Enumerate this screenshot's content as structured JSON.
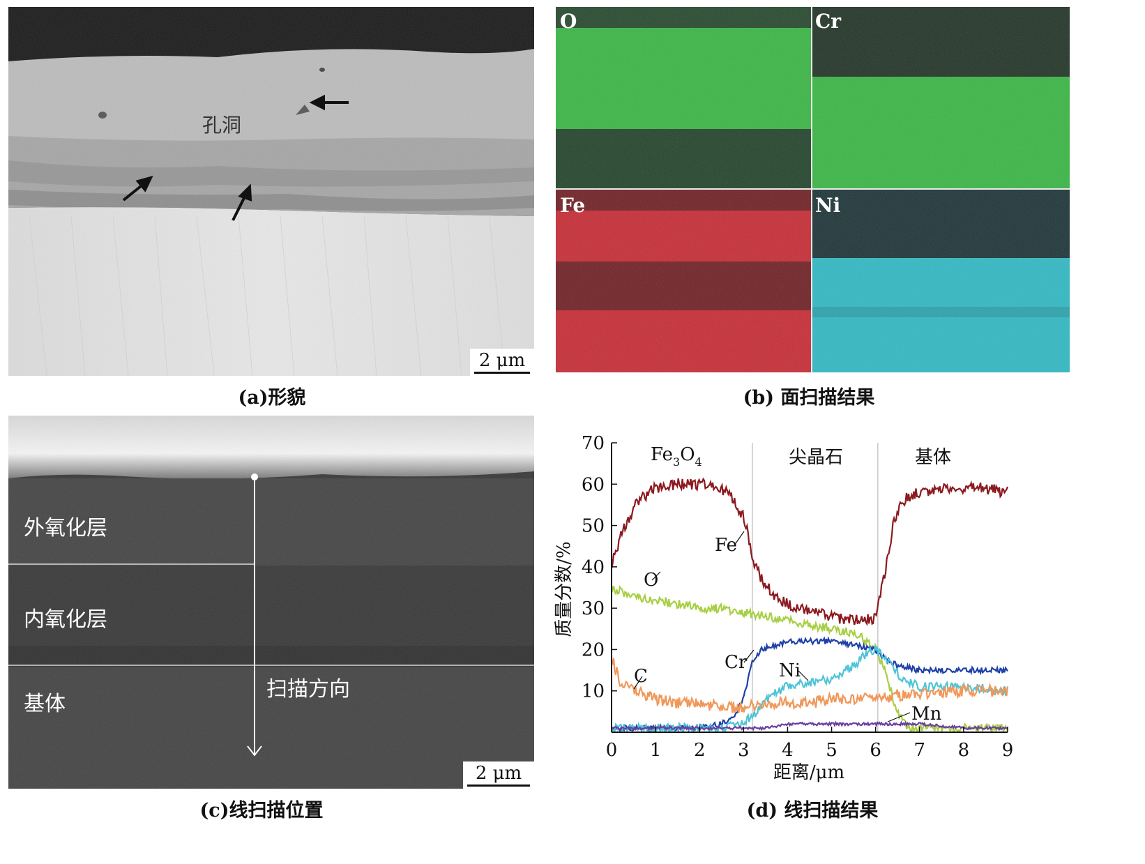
{
  "panel_a": {
    "annotation": "孔洞",
    "scale_bar": "2 μm",
    "caption": "(a)形貌"
  },
  "panel_b": {
    "maps": [
      {
        "element": "O",
        "color": "#2fb53a"
      },
      {
        "element": "Cr",
        "color": "#2fb53a"
      },
      {
        "element": "Fe",
        "color": "#c8202a"
      },
      {
        "element": "Ni",
        "color": "#25b8c4"
      }
    ],
    "caption": "(b) 面扫描结果"
  },
  "panel_c": {
    "layers": [
      "外氧化层",
      "内氧化层",
      "基体"
    ],
    "scan_direction": "扫描方向",
    "scale_bar": "2 μm",
    "caption": "(c)线扫描位置"
  },
  "panel_d": {
    "caption": "(d) 线扫描结果"
  },
  "chart_data": {
    "type": "line",
    "title": "",
    "xlabel": "距离/μm",
    "ylabel": "质量分数/%",
    "xlim": [
      0,
      9
    ],
    "ylim": [
      0,
      70
    ],
    "xticks": [
      0,
      1,
      2,
      3,
      4,
      5,
      6,
      7,
      8,
      9
    ],
    "yticks": [
      10,
      20,
      30,
      40,
      50,
      60,
      70
    ],
    "regions": [
      {
        "label_main": "Fe",
        "label_sub1": "3",
        "label_mid": "O",
        "label_sub2": "4",
        "x_center": 1.5
      },
      {
        "label": "尖晶石",
        "x_center": 4.65
      },
      {
        "label": "基体",
        "x_center": 7.55
      }
    ],
    "region_boundaries": [
      3.2,
      6.05
    ],
    "series": [
      {
        "name": "Fe",
        "color": "#8b1a1f",
        "x": [
          0,
          0.3,
          0.6,
          1.0,
          1.5,
          2.0,
          2.5,
          2.8,
          3.0,
          3.1,
          3.2,
          3.4,
          3.7,
          4.0,
          4.5,
          5.0,
          5.5,
          5.8,
          6.0,
          6.2,
          6.4,
          6.6,
          7.0,
          7.5,
          8.0,
          8.5,
          9.0
        ],
        "y": [
          41,
          50,
          56,
          59,
          60,
          60,
          59,
          56,
          52,
          48,
          42,
          37,
          33,
          31,
          29,
          28,
          27,
          27,
          28,
          38,
          50,
          56,
          58,
          59,
          59,
          59,
          58
        ]
      },
      {
        "name": "O",
        "color": "#a8cf45",
        "x": [
          0,
          0.5,
          1.0,
          1.5,
          2.0,
          2.5,
          3.0,
          3.5,
          4.0,
          4.5,
          5.0,
          5.5,
          5.8,
          6.0,
          6.2,
          6.4,
          6.6,
          6.8,
          7.0,
          8.0,
          9.0
        ],
        "y": [
          35,
          33,
          32,
          31,
          30,
          30,
          29,
          28,
          27,
          26,
          25,
          24,
          22,
          20,
          15,
          8,
          3,
          1,
          1,
          1,
          1
        ]
      },
      {
        "name": "Cr",
        "color": "#1f3fa8",
        "x": [
          0,
          1.0,
          2.0,
          2.5,
          2.8,
          3.0,
          3.1,
          3.2,
          3.4,
          3.7,
          4.0,
          4.5,
          5.0,
          5.5,
          6.0,
          6.2,
          6.5,
          7.0,
          8.0,
          9.0
        ],
        "y": [
          1,
          1,
          1,
          2,
          4,
          8,
          13,
          17,
          20,
          21,
          22,
          22,
          22,
          21,
          20,
          18,
          16,
          15,
          15,
          15
        ]
      },
      {
        "name": "Ni",
        "color": "#4fc4d6",
        "x": [
          0,
          1.0,
          2.0,
          2.5,
          3.0,
          3.3,
          3.6,
          4.0,
          4.5,
          5.0,
          5.5,
          5.8,
          6.0,
          6.3,
          6.6,
          7.0,
          8.0,
          9.0
        ],
        "y": [
          1,
          1,
          1,
          1,
          2,
          5,
          9,
          11,
          12,
          13,
          16,
          19,
          20,
          17,
          13,
          11,
          11,
          10
        ]
      },
      {
        "name": "C",
        "color": "#f0985a",
        "x": [
          0,
          0.2,
          0.5,
          1.0,
          1.5,
          2.0,
          2.5,
          3.0,
          3.5,
          4.0,
          4.5,
          5.0,
          5.5,
          6.0,
          6.5,
          7.0,
          8.0,
          9.0
        ],
        "y": [
          18,
          12,
          10,
          8,
          7,
          7,
          6,
          6,
          7,
          7,
          7,
          8,
          8,
          8,
          9,
          9,
          10,
          10
        ]
      },
      {
        "name": "Mn",
        "color": "#6a3fa0",
        "x": [
          0,
          1.0,
          2.0,
          3.0,
          3.5,
          4.0,
          5.0,
          6.0,
          7.0,
          8.0,
          9.0
        ],
        "y": [
          1,
          1,
          1,
          1,
          1,
          2,
          2,
          2,
          2,
          1,
          1
        ]
      }
    ]
  }
}
